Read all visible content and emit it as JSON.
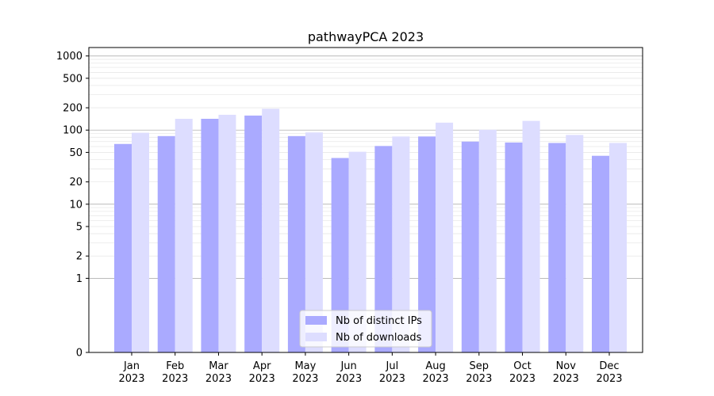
{
  "chart_data": {
    "type": "bar",
    "title": "pathwayPCA 2023",
    "xlabel": "",
    "ylabel": "",
    "y_scale": "symlog",
    "ylim": [
      0,
      1300
    ],
    "y_ticks": [
      {
        "value": 0,
        "label": "0"
      },
      {
        "value": 1,
        "label": "1"
      },
      {
        "value": 2,
        "label": "2"
      },
      {
        "value": 5,
        "label": "5"
      },
      {
        "value": 10,
        "label": "10"
      },
      {
        "value": 20,
        "label": "20"
      },
      {
        "value": 50,
        "label": "50"
      },
      {
        "value": 100,
        "label": "100"
      },
      {
        "value": 200,
        "label": "200"
      },
      {
        "value": 500,
        "label": "500"
      },
      {
        "value": 1000,
        "label": "1000"
      }
    ],
    "categories": [
      {
        "month": "Jan",
        "year": "2023"
      },
      {
        "month": "Feb",
        "year": "2023"
      },
      {
        "month": "Mar",
        "year": "2023"
      },
      {
        "month": "Apr",
        "year": "2023"
      },
      {
        "month": "May",
        "year": "2023"
      },
      {
        "month": "Jun",
        "year": "2023"
      },
      {
        "month": "Jul",
        "year": "2023"
      },
      {
        "month": "Aug",
        "year": "2023"
      },
      {
        "month": "Sep",
        "year": "2023"
      },
      {
        "month": "Oct",
        "year": "2023"
      },
      {
        "month": "Nov",
        "year": "2023"
      },
      {
        "month": "Dec",
        "year": "2023"
      }
    ],
    "series": [
      {
        "name": "Nb of distinct IPs",
        "color": "#aaaaff",
        "values": [
          65,
          83,
          142,
          157,
          83,
          42,
          61,
          82,
          70,
          68,
          67,
          45
        ]
      },
      {
        "name": "Nb of downloads",
        "color": "#ddddff",
        "values": [
          92,
          142,
          161,
          194,
          93,
          51,
          82,
          126,
          101,
          133,
          86,
          67
        ]
      }
    ],
    "legend_position": "lower-center",
    "grid": true
  }
}
